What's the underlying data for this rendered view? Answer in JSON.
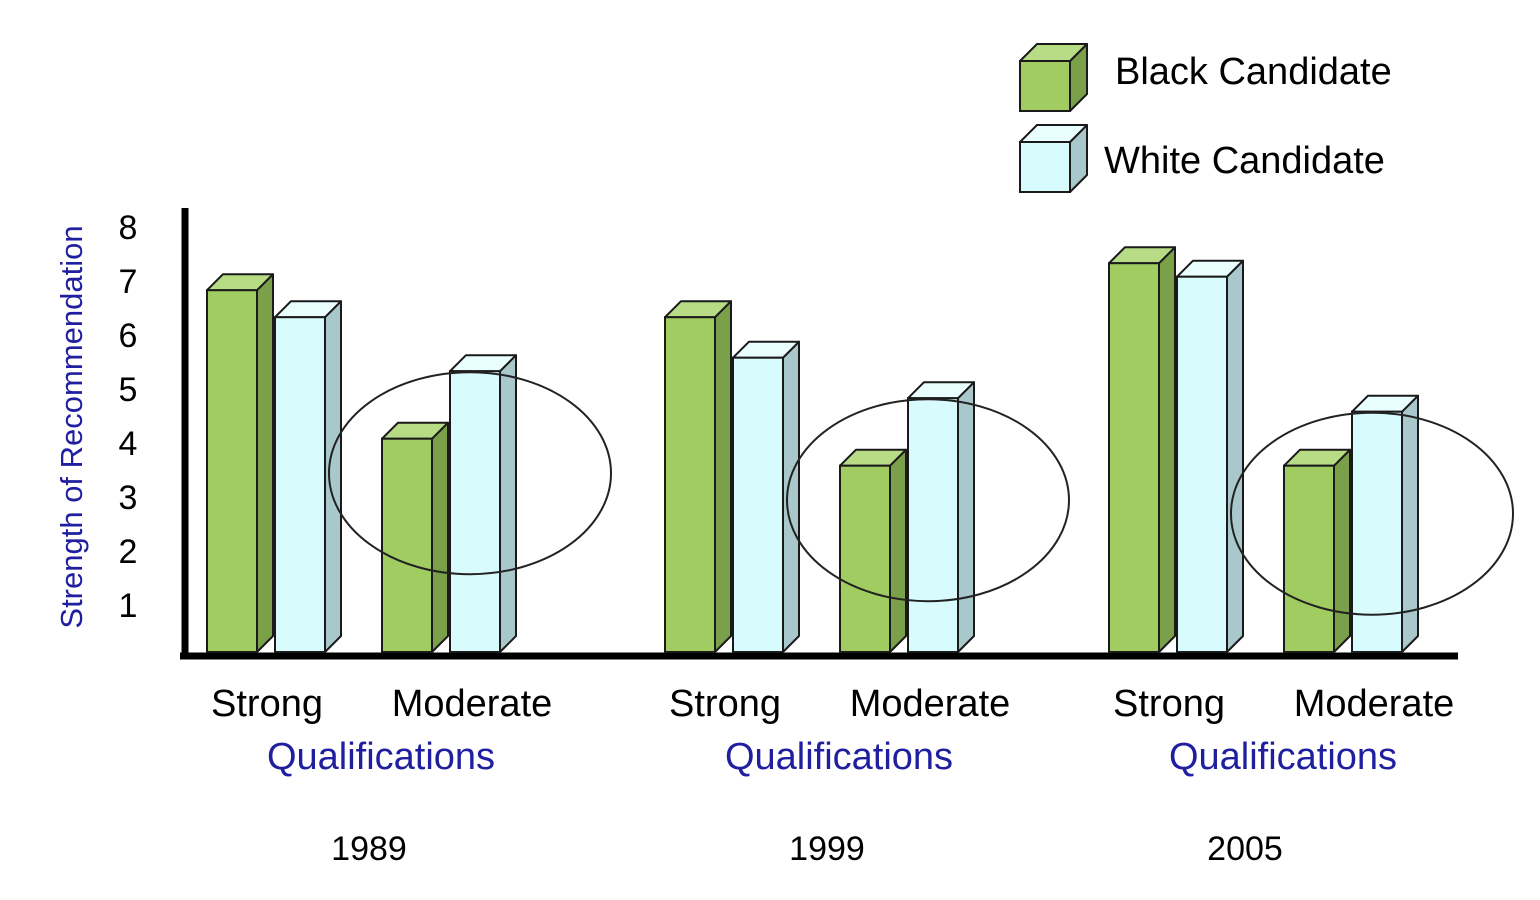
{
  "colors": {
    "black_front": "#a0cc62",
    "black_side": "#7aa04a",
    "black_top": "#b8dc85",
    "white_front": "#d8fcfe",
    "white_side": "#a9c8cb",
    "white_top": "#e9ffff",
    "outline": "#1a1a1a",
    "axis": "#000000",
    "blue_text": "#1f1fa0"
  },
  "chart_data": {
    "type": "bar",
    "ylabel": "Strength of Recommendation",
    "yticks": [
      1,
      2,
      3,
      4,
      5,
      6,
      7,
      8
    ],
    "ylim": [
      0,
      8
    ],
    "legend": {
      "position": "top-right",
      "entries": [
        "Black Candidate",
        "White Candidate"
      ]
    },
    "groups": [
      {
        "year": "1989",
        "group_label": "Qualifications",
        "categories": [
          "Strong",
          "Moderate"
        ],
        "series": [
          {
            "name": "Black Candidate",
            "values": [
              6.7,
              3.95
            ]
          },
          {
            "name": "White Candidate",
            "values": [
              6.2,
              5.2
            ]
          }
        ],
        "circled_category": "Moderate"
      },
      {
        "year": "1999",
        "group_label": "Qualifications",
        "categories": [
          "Strong",
          "Moderate"
        ],
        "series": [
          {
            "name": "Black Candidate",
            "values": [
              6.2,
              3.45
            ]
          },
          {
            "name": "White Candidate",
            "values": [
              5.45,
              4.7
            ]
          }
        ],
        "circled_category": "Moderate"
      },
      {
        "year": "2005",
        "group_label": "Qualifications",
        "categories": [
          "Strong",
          "Moderate"
        ],
        "series": [
          {
            "name": "Black Candidate",
            "values": [
              7.2,
              3.45
            ]
          },
          {
            "name": "White Candidate",
            "values": [
              6.95,
              4.45
            ]
          }
        ],
        "circled_category": "Moderate"
      }
    ]
  }
}
